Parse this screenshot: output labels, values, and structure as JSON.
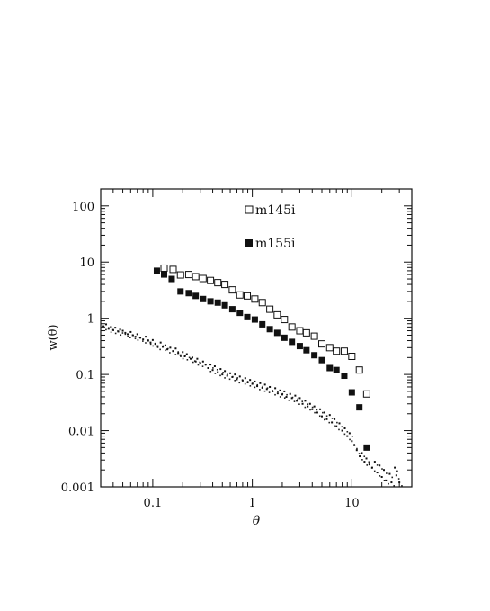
{
  "chart_data": {
    "type": "scatter",
    "title": "",
    "xlabel": "θ",
    "ylabel": "w(θ)",
    "xscale": "log",
    "yscale": "log",
    "xlim": [
      0.03,
      40
    ],
    "ylim": [
      0.001,
      200
    ],
    "grid": false,
    "legend_position": "top-center",
    "x_tick_labels": [
      "0.1",
      "1",
      "10"
    ],
    "x_ticks": [
      0.1,
      1,
      10
    ],
    "y_tick_labels": [
      "0.001",
      "0.01",
      "0.1",
      "1",
      "10",
      "100"
    ],
    "y_ticks": [
      0.001,
      0.01,
      0.1,
      1,
      10,
      100
    ],
    "series": [
      {
        "name": "m145i",
        "marker": "open-square",
        "x": [
          0.13,
          0.16,
          0.19,
          0.23,
          0.27,
          0.32,
          0.38,
          0.45,
          0.53,
          0.63,
          0.75,
          0.89,
          1.06,
          1.26,
          1.5,
          1.78,
          2.1,
          2.5,
          3.0,
          3.5,
          4.2,
          5.0,
          6.0,
          7.0,
          8.4,
          10.0,
          11.9,
          14.1
        ],
        "y": [
          7.8,
          7.4,
          5.9,
          6.0,
          5.5,
          5.1,
          4.7,
          4.3,
          4.0,
          3.2,
          2.6,
          2.5,
          2.2,
          1.9,
          1.45,
          1.15,
          0.95,
          0.7,
          0.6,
          0.55,
          0.48,
          0.35,
          0.3,
          0.26,
          0.26,
          0.21,
          0.12,
          0.045
        ]
      },
      {
        "name": "m155i",
        "marker": "filled-square",
        "x": [
          0.11,
          0.13,
          0.155,
          0.19,
          0.23,
          0.27,
          0.32,
          0.38,
          0.45,
          0.53,
          0.63,
          0.75,
          0.89,
          1.06,
          1.26,
          1.5,
          1.78,
          2.1,
          2.5,
          3.0,
          3.5,
          4.2,
          5.0,
          6.0,
          7.0,
          8.4,
          10.0,
          11.9,
          14.1
        ],
        "y": [
          7.0,
          6.0,
          5.0,
          3.0,
          2.8,
          2.5,
          2.2,
          2.0,
          1.9,
          1.7,
          1.45,
          1.25,
          1.05,
          0.95,
          0.78,
          0.64,
          0.55,
          0.45,
          0.38,
          0.32,
          0.27,
          0.22,
          0.18,
          0.13,
          0.12,
          0.095,
          0.048,
          0.026,
          0.005
        ]
      },
      {
        "name": "",
        "marker": "dot",
        "x": [
          0.032,
          0.034,
          0.036,
          0.038,
          0.04,
          0.042,
          0.045,
          0.047,
          0.05,
          0.053,
          0.056,
          0.06,
          0.063,
          0.067,
          0.07,
          0.075,
          0.08,
          0.085,
          0.09,
          0.095,
          0.1,
          0.106,
          0.112,
          0.12,
          0.126,
          0.134,
          0.14,
          0.15,
          0.16,
          0.17,
          0.18,
          0.19,
          0.2,
          0.21,
          0.22,
          0.24,
          0.25,
          0.27,
          0.28,
          0.3,
          0.32,
          0.34,
          0.36,
          0.38,
          0.4,
          0.42,
          0.45,
          0.48,
          0.5,
          0.53,
          0.56,
          0.6,
          0.63,
          0.67,
          0.7,
          0.75,
          0.8,
          0.85,
          0.9,
          0.95,
          1.0,
          1.06,
          1.12,
          1.2,
          1.26,
          1.34,
          1.4,
          1.5,
          1.6,
          1.7,
          1.8,
          1.9,
          2.0,
          2.1,
          2.2,
          2.4,
          2.5,
          2.7,
          2.8,
          3.0,
          3.2,
          3.4,
          3.6,
          3.8,
          4.0,
          4.2,
          4.5,
          4.8,
          5.0,
          5.3,
          5.6,
          6.0,
          6.3,
          6.7,
          7.0,
          7.5,
          8.0,
          8.5,
          9.0,
          9.5,
          10.0,
          10.6,
          11.2,
          12.0,
          12.6,
          13.4,
          14.0,
          15.0,
          16.0,
          17.0,
          18.0,
          19.0,
          20.0,
          21.0,
          22.0,
          24.0,
          25.0,
          27.0,
          28.0,
          30.0
        ],
        "y": [
          0.72,
          0.78,
          0.65,
          0.7,
          0.62,
          0.68,
          0.58,
          0.63,
          0.6,
          0.55,
          0.52,
          0.57,
          0.5,
          0.47,
          0.52,
          0.45,
          0.42,
          0.47,
          0.4,
          0.37,
          0.41,
          0.35,
          0.32,
          0.37,
          0.31,
          0.33,
          0.28,
          0.3,
          0.26,
          0.29,
          0.24,
          0.22,
          0.25,
          0.21,
          0.23,
          0.19,
          0.2,
          0.17,
          0.19,
          0.16,
          0.17,
          0.15,
          0.13,
          0.15,
          0.12,
          0.14,
          0.11,
          0.125,
          0.1,
          0.115,
          0.095,
          0.105,
          0.09,
          0.1,
          0.082,
          0.092,
          0.078,
          0.086,
          0.072,
          0.08,
          0.068,
          0.075,
          0.062,
          0.07,
          0.058,
          0.066,
          0.055,
          0.06,
          0.05,
          0.057,
          0.046,
          0.052,
          0.044,
          0.05,
          0.04,
          0.045,
          0.038,
          0.042,
          0.034,
          0.038,
          0.03,
          0.034,
          0.027,
          0.03,
          0.024,
          0.027,
          0.021,
          0.024,
          0.018,
          0.021,
          0.016,
          0.019,
          0.014,
          0.016,
          0.012,
          0.0135,
          0.01,
          0.011,
          0.008,
          0.009,
          0.0065,
          0.0055,
          0.0045,
          0.0035,
          0.004,
          0.0028,
          0.0032,
          0.0025,
          0.0022,
          0.0028,
          0.0018,
          0.0024,
          0.0015,
          0.002,
          0.0013,
          0.0017,
          0.0012,
          0.0022,
          0.0016,
          0.0012
        ]
      }
    ]
  }
}
